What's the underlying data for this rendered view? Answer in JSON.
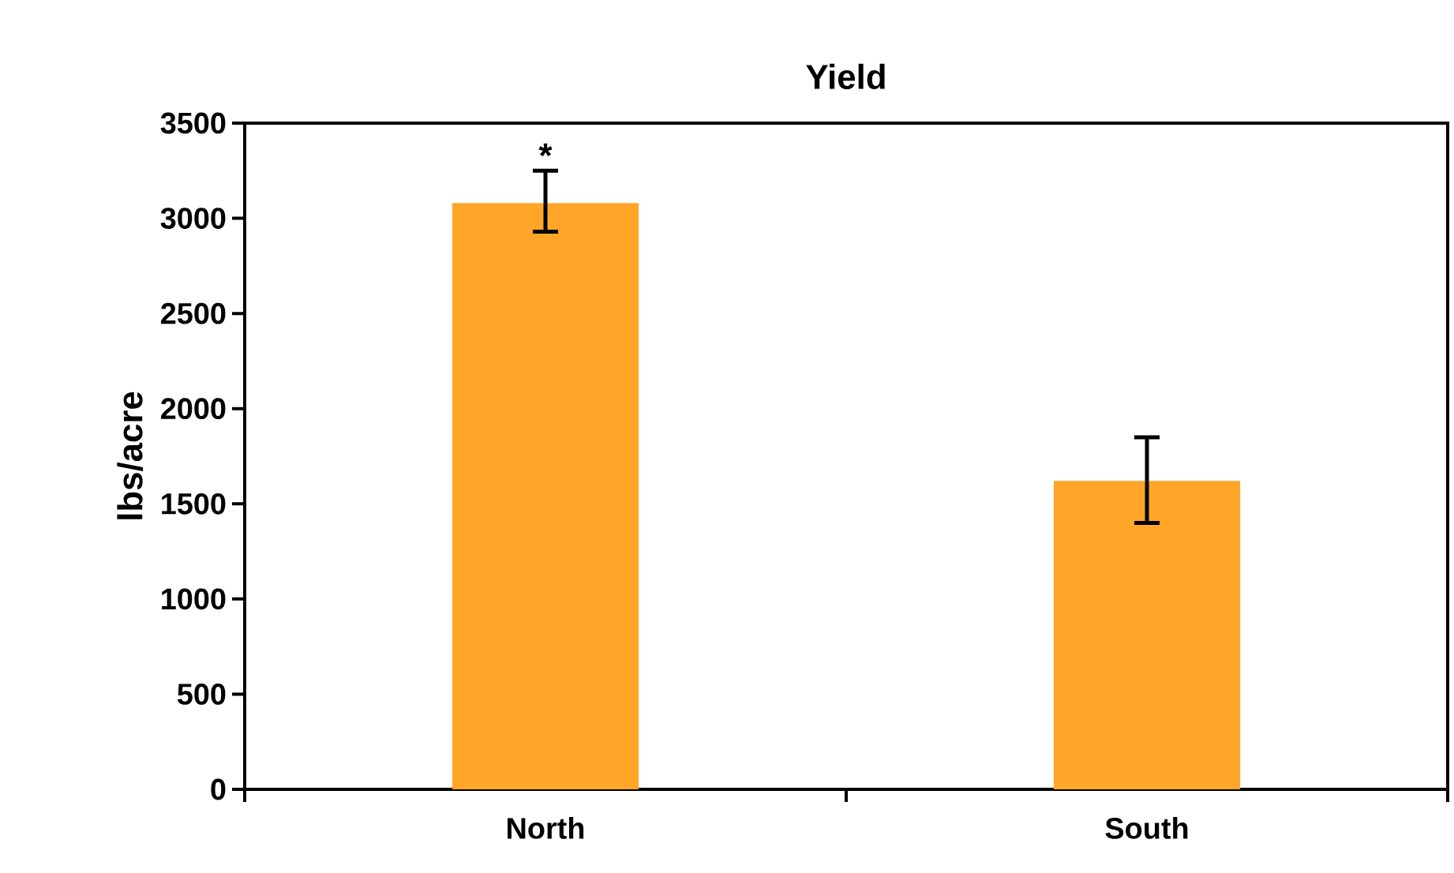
{
  "chart_data": {
    "type": "bar",
    "title": "Yield",
    "ylabel": "lbs/acre",
    "categories": [
      "North",
      "South"
    ],
    "values": [
      3080,
      1620
    ],
    "errors": [
      [
        2930,
        3250
      ],
      [
        1400,
        1850
      ]
    ],
    "color": "#ffa629",
    "ylim": [
      0,
      3500
    ],
    "yticks": [
      0,
      500,
      1000,
      1500,
      2000,
      2500,
      3000,
      3500
    ],
    "annotations": [
      "*"
    ]
  }
}
